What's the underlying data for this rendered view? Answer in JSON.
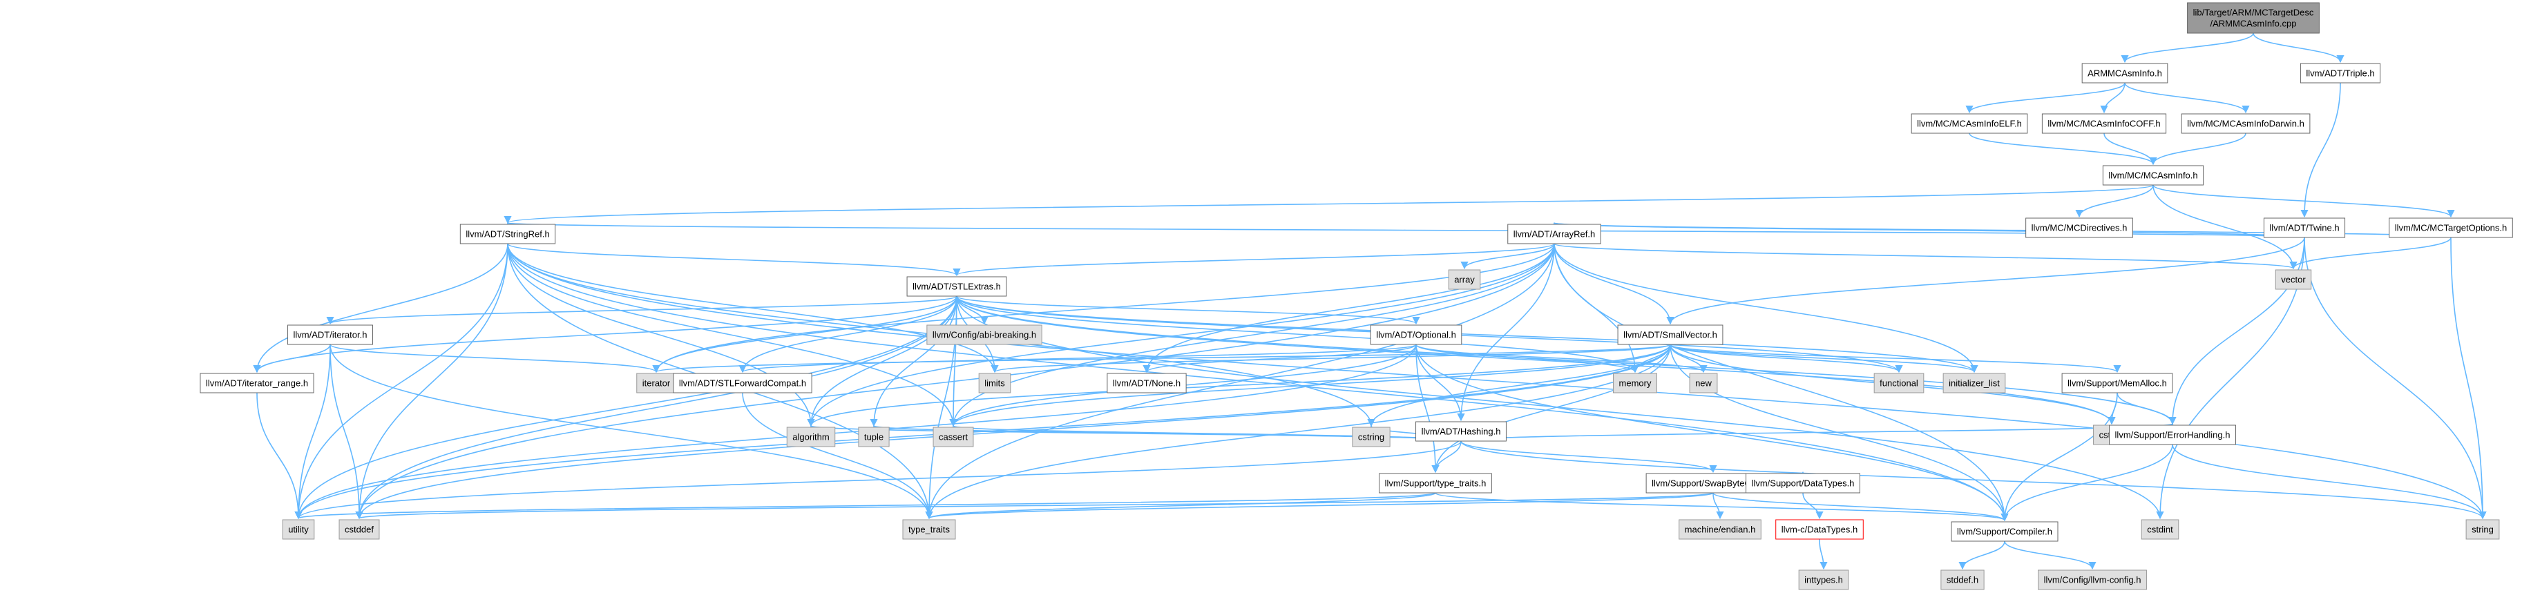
{
  "colors": {
    "edge": "#63b8ff",
    "root_fill": "#999999",
    "doc_fill": "#ffffff",
    "doc_stroke": "#666666",
    "sys_fill": "#e0e0e0",
    "sys_stroke": "#999999",
    "missing_stroke": "#ff0000"
  },
  "nodes": {
    "root": {
      "label": [
        "lib/Target/ARM/MCTargetDesc",
        "/ARMMCAsmInfo.cpp"
      ],
      "kind": "root"
    },
    "armmcasminfo": {
      "label": [
        "ARMMCAsmInfo.h"
      ],
      "kind": "doc"
    },
    "triple": {
      "label": [
        "llvm/ADT/Triple.h"
      ],
      "kind": "doc"
    },
    "mcasminfoelf": {
      "label": [
        "llvm/MC/MCAsmInfoELF.h"
      ],
      "kind": "doc"
    },
    "mcasminfocoff": {
      "label": [
        "llvm/MC/MCAsmInfoCOFF.h"
      ],
      "kind": "doc"
    },
    "mcasminfodarwin": {
      "label": [
        "llvm/MC/MCAsmInfoDarwin.h"
      ],
      "kind": "doc"
    },
    "mcasminfo": {
      "label": [
        "llvm/MC/MCAsmInfo.h"
      ],
      "kind": "doc"
    },
    "mcdirectives": {
      "label": [
        "llvm/MC/MCDirectives.h"
      ],
      "kind": "doc"
    },
    "mctargetoptions": {
      "label": [
        "llvm/MC/MCTargetOptions.h"
      ],
      "kind": "doc"
    },
    "twine": {
      "label": [
        "llvm/ADT/Twine.h"
      ],
      "kind": "doc"
    },
    "stringref": {
      "label": [
        "llvm/ADT/StringRef.h"
      ],
      "kind": "doc"
    },
    "arrayref": {
      "label": [
        "llvm/ADT/ArrayRef.h"
      ],
      "kind": "doc"
    },
    "array": {
      "label": [
        "array"
      ],
      "kind": "sys"
    },
    "vector": {
      "label": [
        "vector"
      ],
      "kind": "sys"
    },
    "stlextras": {
      "label": [
        "llvm/ADT/STLExtras.h"
      ],
      "kind": "doc"
    },
    "abibreaking": {
      "label": [
        "llvm/Config/abi-breaking.h"
      ],
      "kind": "sys"
    },
    "adtiterator": {
      "label": [
        "llvm/ADT/iterator.h"
      ],
      "kind": "doc"
    },
    "optional": {
      "label": [
        "llvm/ADT/Optional.h"
      ],
      "kind": "doc"
    },
    "smallvector": {
      "label": [
        "llvm/ADT/SmallVector.h"
      ],
      "kind": "doc"
    },
    "iteratorrange": {
      "label": [
        "llvm/ADT/iterator_range.h"
      ],
      "kind": "doc"
    },
    "iterator": {
      "label": [
        "iterator"
      ],
      "kind": "sys"
    },
    "stlforwardcompat": {
      "label": [
        "llvm/ADT/STLForwardCompat.h"
      ],
      "kind": "doc"
    },
    "limits": {
      "label": [
        "limits"
      ],
      "kind": "sys"
    },
    "none": {
      "label": [
        "llvm/ADT/None.h"
      ],
      "kind": "doc"
    },
    "memory": {
      "label": [
        "memory"
      ],
      "kind": "sys"
    },
    "new": {
      "label": [
        "new"
      ],
      "kind": "sys"
    },
    "functional": {
      "label": [
        "functional"
      ],
      "kind": "sys"
    },
    "initializerlist": {
      "label": [
        "initializer_list"
      ],
      "kind": "sys"
    },
    "memalloc": {
      "label": [
        "llvm/Support/MemAlloc.h"
      ],
      "kind": "doc"
    },
    "hashing": {
      "label": [
        "llvm/ADT/Hashing.h"
      ],
      "kind": "doc"
    },
    "cstdlib": {
      "label": [
        "cstdlib"
      ],
      "kind": "sys"
    },
    "errorhandling": {
      "label": [
        "llvm/Support/ErrorHandling.h"
      ],
      "kind": "doc"
    },
    "algorithm": {
      "label": [
        "algorithm"
      ],
      "kind": "sys"
    },
    "tuple": {
      "label": [
        "tuple"
      ],
      "kind": "sys"
    },
    "cassert": {
      "label": [
        "cassert"
      ],
      "kind": "sys"
    },
    "cstring": {
      "label": [
        "cstring"
      ],
      "kind": "sys"
    },
    "typetraitsh": {
      "label": [
        "llvm/Support/type_traits.h"
      ],
      "kind": "doc"
    },
    "swapbyteorder": {
      "label": [
        "llvm/Support/SwapByteOrder.h"
      ],
      "kind": "doc"
    },
    "datatypesh": {
      "label": [
        "llvm/Support/DataTypes.h"
      ],
      "kind": "doc"
    },
    "utility": {
      "label": [
        "utility"
      ],
      "kind": "sys"
    },
    "cstddef": {
      "label": [
        "cstddef"
      ],
      "kind": "sys"
    },
    "typetraits": {
      "label": [
        "type_traits"
      ],
      "kind": "sys"
    },
    "machineendian": {
      "label": [
        "machine/endian.h"
      ],
      "kind": "sys"
    },
    "cdatatypes": {
      "label": [
        "llvm-c/DataTypes.h"
      ],
      "kind": "missing"
    },
    "compiler": {
      "label": [
        "llvm/Support/Compiler.h"
      ],
      "kind": "doc"
    },
    "cstdint": {
      "label": [
        "cstdint"
      ],
      "kind": "sys"
    },
    "string": {
      "label": [
        "string"
      ],
      "kind": "sys"
    },
    "inttypes": {
      "label": [
        "inttypes.h"
      ],
      "kind": "sys"
    },
    "stddef": {
      "label": [
        "stddef.h"
      ],
      "kind": "sys"
    },
    "llvmconfig": {
      "label": [
        "llvm/Config/llvm-config.h"
      ],
      "kind": "sys"
    }
  },
  "edges": [
    [
      "root",
      "armmcasminfo"
    ],
    [
      "root",
      "triple"
    ],
    [
      "armmcasminfo",
      "mcasminfoelf"
    ],
    [
      "armmcasminfo",
      "mcasminfocoff"
    ],
    [
      "armmcasminfo",
      "mcasminfodarwin"
    ],
    [
      "mcasminfoelf",
      "mcasminfo"
    ],
    [
      "mcasminfocoff",
      "mcasminfo"
    ],
    [
      "mcasminfodarwin",
      "mcasminfo"
    ],
    [
      "mcasminfo",
      "mcdirectives"
    ],
    [
      "mcasminfo",
      "mctargetoptions"
    ],
    [
      "mcasminfo",
      "vector"
    ],
    [
      "mcasminfo",
      "stringref"
    ],
    [
      "triple",
      "twine"
    ],
    [
      "twine",
      "stringref"
    ],
    [
      "twine",
      "smallvector"
    ],
    [
      "twine",
      "errorhandling"
    ],
    [
      "twine",
      "cstdint"
    ],
    [
      "twine",
      "string"
    ],
    [
      "twine",
      "arrayref"
    ],
    [
      "mctargetoptions",
      "arrayref"
    ],
    [
      "mctargetoptions",
      "string"
    ],
    [
      "mctargetoptions",
      "vector"
    ],
    [
      "stringref",
      "stlextras"
    ],
    [
      "stringref",
      "iteratorrange"
    ],
    [
      "stringref",
      "compiler"
    ],
    [
      "stringref",
      "algorithm"
    ],
    [
      "stringref",
      "cassert"
    ],
    [
      "stringref",
      "cstddef"
    ],
    [
      "stringref",
      "cstring"
    ],
    [
      "stringref",
      "limits"
    ],
    [
      "stringref",
      "string"
    ],
    [
      "stringref",
      "typetraits"
    ],
    [
      "stringref",
      "utility"
    ],
    [
      "arrayref",
      "hashing"
    ],
    [
      "arrayref",
      "none"
    ],
    [
      "arrayref",
      "smallvector"
    ],
    [
      "arrayref",
      "stlextras"
    ],
    [
      "arrayref",
      "compiler"
    ],
    [
      "arrayref",
      "algorithm"
    ],
    [
      "arrayref",
      "array"
    ],
    [
      "arrayref",
      "cassert"
    ],
    [
      "arrayref",
      "cstddef"
    ],
    [
      "arrayref",
      "initializerlist"
    ],
    [
      "arrayref",
      "iterator"
    ],
    [
      "arrayref",
      "memory"
    ],
    [
      "arrayref",
      "typetraits"
    ],
    [
      "arrayref",
      "vector"
    ],
    [
      "stlextras",
      "abibreaking"
    ],
    [
      "stlextras",
      "adtiterator"
    ],
    [
      "stlextras",
      "optional"
    ],
    [
      "stlextras",
      "stlforwardcompat"
    ],
    [
      "stlextras",
      "iteratorrange"
    ],
    [
      "stlextras",
      "errorhandling"
    ],
    [
      "stlextras",
      "algorithm"
    ],
    [
      "stlextras",
      "cassert"
    ],
    [
      "stlextras",
      "cstddef"
    ],
    [
      "stlextras",
      "cstdint"
    ],
    [
      "stlextras",
      "cstdlib"
    ],
    [
      "stlextras",
      "functional"
    ],
    [
      "stlextras",
      "initializerlist"
    ],
    [
      "stlextras",
      "iterator"
    ],
    [
      "stlextras",
      "limits"
    ],
    [
      "stlextras",
      "memory"
    ],
    [
      "stlextras",
      "tuple"
    ],
    [
      "stlextras",
      "typetraits"
    ],
    [
      "stlextras",
      "utility"
    ],
    [
      "adtiterator",
      "iteratorrange"
    ],
    [
      "adtiterator",
      "cstddef"
    ],
    [
      "adtiterator",
      "iterator"
    ],
    [
      "adtiterator",
      "typetraits"
    ],
    [
      "adtiterator",
      "utility"
    ],
    [
      "iteratorrange",
      "utility"
    ],
    [
      "stlforwardcompat",
      "typetraits"
    ],
    [
      "optional",
      "hashing"
    ],
    [
      "optional",
      "none"
    ],
    [
      "optional",
      "stlforwardcompat"
    ],
    [
      "optional",
      "compiler"
    ],
    [
      "optional",
      "typetraitsh"
    ],
    [
      "optional",
      "cassert"
    ],
    [
      "optional",
      "memory"
    ],
    [
      "optional",
      "new"
    ],
    [
      "optional",
      "utility"
    ],
    [
      "hashing",
      "errorhandling"
    ],
    [
      "hashing",
      "swapbyteorder"
    ],
    [
      "hashing",
      "typetraitsh"
    ],
    [
      "hashing",
      "algorithm"
    ],
    [
      "hashing",
      "cassert"
    ],
    [
      "hashing",
      "cstring"
    ],
    [
      "hashing",
      "string"
    ],
    [
      "hashing",
      "tuple"
    ],
    [
      "hashing",
      "utility"
    ],
    [
      "smallvector",
      "compiler"
    ],
    [
      "smallvector",
      "memalloc"
    ],
    [
      "smallvector",
      "typetraitsh"
    ],
    [
      "smallvector",
      "algorithm"
    ],
    [
      "smallvector",
      "cassert"
    ],
    [
      "smallvector",
      "cstddef"
    ],
    [
      "smallvector",
      "cstdlib"
    ],
    [
      "smallvector",
      "cstring"
    ],
    [
      "smallvector",
      "functional"
    ],
    [
      "smallvector",
      "initializerlist"
    ],
    [
      "smallvector",
      "iterator"
    ],
    [
      "smallvector",
      "limits"
    ],
    [
      "smallvector",
      "memory"
    ],
    [
      "smallvector",
      "new"
    ],
    [
      "smallvector",
      "typetraits"
    ],
    [
      "smallvector",
      "utility"
    ],
    [
      "memalloc",
      "compiler"
    ],
    [
      "memalloc",
      "errorhandling"
    ],
    [
      "memalloc",
      "cstdlib"
    ],
    [
      "errorhandling",
      "compiler"
    ],
    [
      "errorhandling",
      "string"
    ],
    [
      "typetraitsh",
      "compiler"
    ],
    [
      "typetraitsh",
      "typetraits"
    ],
    [
      "typetraitsh",
      "utility"
    ],
    [
      "swapbyteorder",
      "compiler"
    ],
    [
      "swapbyteorder",
      "datatypesh"
    ],
    [
      "swapbyteorder",
      "cstddef"
    ],
    [
      "swapbyteorder",
      "typetraits"
    ],
    [
      "swapbyteorder",
      "machineendian"
    ],
    [
      "datatypesh",
      "cdatatypes"
    ],
    [
      "cdatatypes",
      "inttypes"
    ],
    [
      "compiler",
      "stddef"
    ],
    [
      "compiler",
      "llvmconfig"
    ]
  ]
}
